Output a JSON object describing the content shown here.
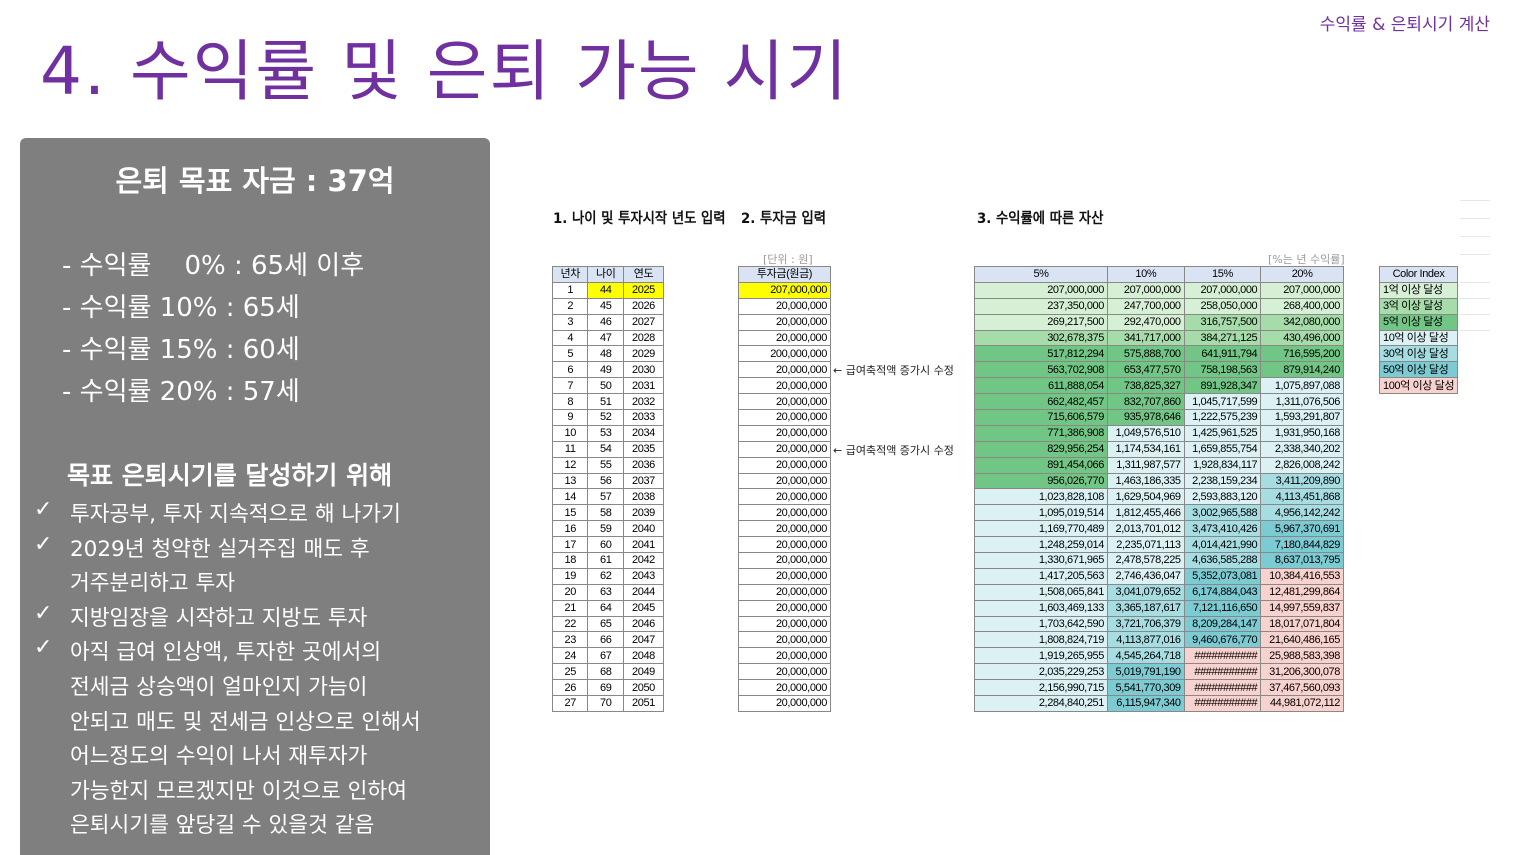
{
  "slide_title": "4. 수익률 및 은퇴 가능 시기",
  "corner_label": "수익률 & 은퇴시기 계산",
  "colors": {
    "accent": "#7030a0",
    "panel": "#7f7f7f",
    "input_highlight": "#ffff00",
    "header": "#dae3f3"
  },
  "panel": {
    "title": "은퇴 목표 자금 : 37억",
    "rates": [
      "- 수익률    0% : 65세 이후",
      "- 수익률 10% : 65세",
      "- 수익률 15% : 60세",
      "- 수익률 20% : 57세"
    ],
    "goal_heading": "목표 은퇴시기를 달성하기 위해",
    "check_icon": "✓",
    "tips": [
      {
        "check": true,
        "text": "투자공부, 투자 지속적으로 해 나가기"
      },
      {
        "check": true,
        "text": "2029년 청약한 실거주집 매도 후"
      },
      {
        "check": false,
        "text": "거주분리하고 투자"
      },
      {
        "check": true,
        "text": "지방임장을 시작하고 지방도 투자"
      },
      {
        "check": true,
        "text": "아직 급여 인상액, 투자한 곳에서의"
      },
      {
        "check": false,
        "text": "전세금 상승액이 얼마인지 가늠이"
      },
      {
        "check": false,
        "text": "안되고 매도 및 전세금 인상으로 인해서"
      },
      {
        "check": false,
        "text": "어느정도의 수익이 나서 재투자가"
      },
      {
        "check": false,
        "text": "가능한지 모르겠지만 이것으로 인하여"
      },
      {
        "check": false,
        "text": "은퇴시기를 앞당길 수 있을것 같음"
      }
    ]
  },
  "sheet": {
    "heading1": "1. 나이 및 투자시작 년도 입력",
    "heading2": "2. 투자금 입력",
    "heading3": "3. 수익률에 따른 자산",
    "unit_label": "[단위 : 원]",
    "rate_note": "[%는 년 수익률]",
    "age_headers": [
      "년차",
      "나이",
      "연도"
    ],
    "invest_header": "투자금(원금)",
    "return_headers": [
      "5%",
      "10%",
      "15%",
      "20%"
    ],
    "note_text": "← 급여축적액 증가시 수정",
    "note_rows": [
      6,
      11
    ],
    "start_age": 44,
    "start_year": 2025,
    "investments": [
      "207,000,000",
      "20,000,000",
      "20,000,000",
      "20,000,000",
      "200,000,000",
      "20,000,000",
      "20,000,000",
      "20,000,000",
      "20,000,000",
      "20,000,000",
      "20,000,000",
      "20,000,000",
      "20,000,000",
      "20,000,000",
      "20,000,000",
      "20,000,000",
      "20,000,000",
      "20,000,000",
      "20,000,000",
      "20,000,000",
      "20,000,000",
      "20,000,000",
      "20,000,000",
      "20,000,000",
      "20,000,000",
      "20,000,000",
      "20,000,000"
    ],
    "returns": [
      [
        "207,000,000",
        "207,000,000",
        "207,000,000",
        "207,000,000"
      ],
      [
        "237,350,000",
        "247,700,000",
        "258,050,000",
        "268,400,000"
      ],
      [
        "269,217,500",
        "292,470,000",
        "316,757,500",
        "342,080,000"
      ],
      [
        "302,678,375",
        "341,717,000",
        "384,271,125",
        "430,496,000"
      ],
      [
        "517,812,294",
        "575,888,700",
        "641,911,794",
        "716,595,200"
      ],
      [
        "563,702,908",
        "653,477,570",
        "758,198,563",
        "879,914,240"
      ],
      [
        "611,888,054",
        "738,825,327",
        "891,928,347",
        "1,075,897,088"
      ],
      [
        "662,482,457",
        "832,707,860",
        "1,045,717,599",
        "1,311,076,506"
      ],
      [
        "715,606,579",
        "935,978,646",
        "1,222,575,239",
        "1,593,291,807"
      ],
      [
        "771,386,908",
        "1,049,576,510",
        "1,425,961,525",
        "1,931,950,168"
      ],
      [
        "829,956,254",
        "1,174,534,161",
        "1,659,855,754",
        "2,338,340,202"
      ],
      [
        "891,454,066",
        "1,311,987,577",
        "1,928,834,117",
        "2,826,008,242"
      ],
      [
        "956,026,770",
        "1,463,186,335",
        "2,238,159,234",
        "3,411,209,890"
      ],
      [
        "1,023,828,108",
        "1,629,504,969",
        "2,593,883,120",
        "4,113,451,868"
      ],
      [
        "1,095,019,514",
        "1,812,455,466",
        "3,002,965,588",
        "4,956,142,242"
      ],
      [
        "1,169,770,489",
        "2,013,701,012",
        "3,473,410,426",
        "5,967,370,691"
      ],
      [
        "1,248,259,014",
        "2,235,071,113",
        "4,014,421,990",
        "7,180,844,829"
      ],
      [
        "1,330,671,965",
        "2,478,578,225",
        "4,636,585,288",
        "8,637,013,795"
      ],
      [
        "1,417,205,563",
        "2,746,436,047",
        "5,352,073,081",
        "10,384,416,553"
      ],
      [
        "1,508,065,841",
        "3,041,079,652",
        "6,174,884,043",
        "12,481,299,864"
      ],
      [
        "1,603,469,133",
        "3,365,187,617",
        "7,121,116,650",
        "14,997,559,837"
      ],
      [
        "1,703,642,590",
        "3,721,706,379",
        "8,209,284,147",
        "18,017,071,804"
      ],
      [
        "1,808,824,719",
        "4,113,877,016",
        "9,460,676,770",
        "21,640,486,165"
      ],
      [
        "1,919,265,955",
        "4,545,264,718",
        "###########",
        "25,988,583,398"
      ],
      [
        "2,035,229,253",
        "5,019,791,190",
        "###########",
        "31,206,300,078"
      ],
      [
        "2,156,990,715",
        "5,541,770,309",
        "###########",
        "37,467,560,093"
      ],
      [
        "2,284,840,251",
        "6,115,947,340",
        "###########",
        "44,981,072,112"
      ]
    ],
    "color_index_header": "Color Index",
    "color_index": [
      {
        "label": "1억 이상 달성",
        "min": 100000000,
        "color": "#d5f0d5"
      },
      {
        "label": "3억 이상 달성",
        "min": 300000000,
        "color": "#a6dca9"
      },
      {
        "label": "5억 이상 달성",
        "min": 500000000,
        "color": "#72c685"
      },
      {
        "label": "10억 이상 달성",
        "min": 1000000000,
        "color": "#dbf1f4"
      },
      {
        "label": "30억 이상 달성",
        "min": 3000000000,
        "color": "#a6dde2"
      },
      {
        "label": "50억 이상 달성",
        "min": 5000000000,
        "color": "#7ccbd3"
      },
      {
        "label": "100억 이상 달성",
        "min": 10000000000,
        "color": "#f8d2cf"
      }
    ]
  }
}
